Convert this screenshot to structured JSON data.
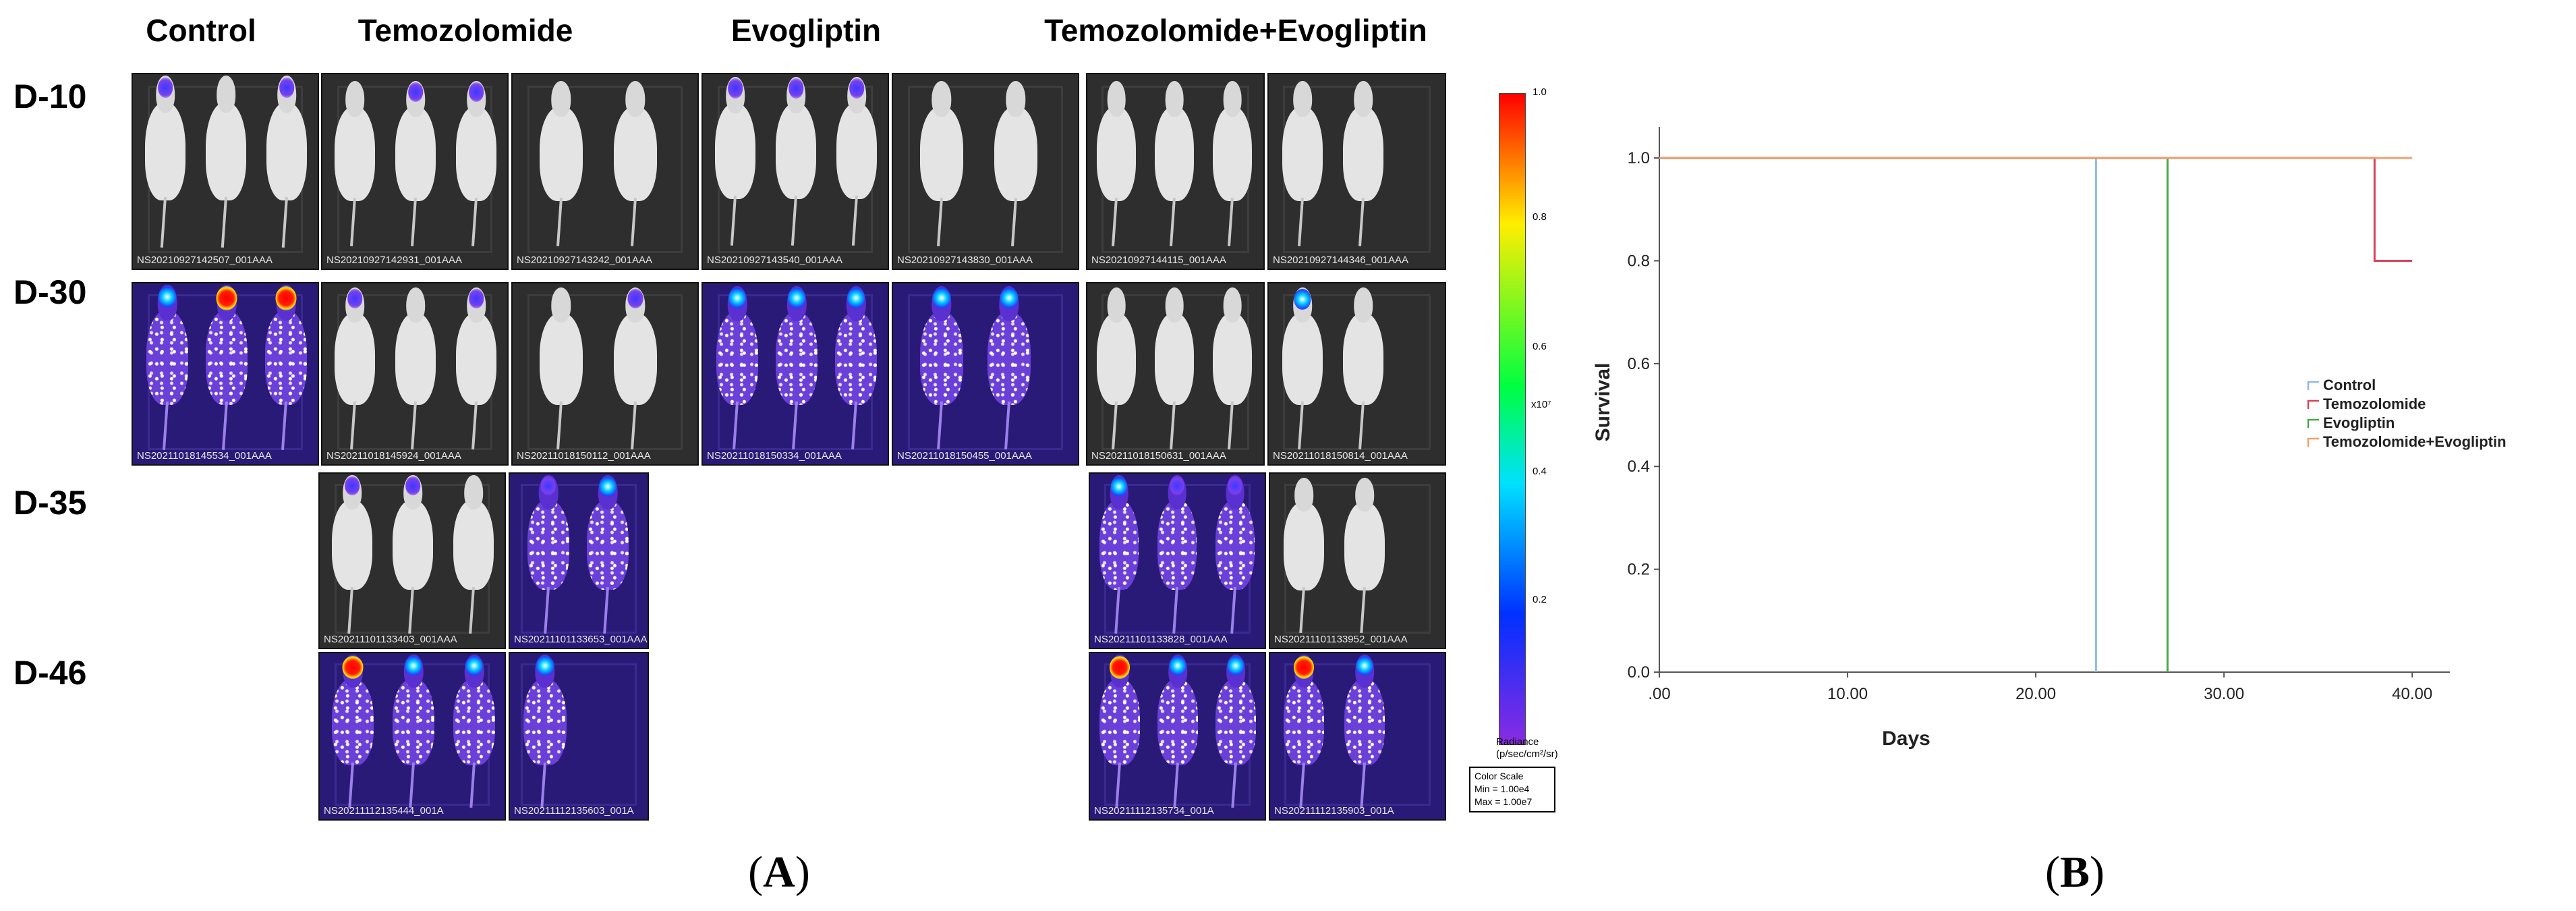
{
  "panel_a": {
    "label_letter": "A",
    "groups": [
      "Control",
      "Temozolomide",
      "Evogliptin",
      "Temozolomide+Evogliptin"
    ],
    "days": [
      "D-10",
      "D-30",
      "D-35",
      "D-46"
    ],
    "image_captions": {
      "d10": [
        "NS20210927142507_001AAA",
        "NS20210927142931_001AAA",
        "NS20210927143242_001AAA",
        "NS20210927143540_001AAA",
        "NS20210927143830_001AAA",
        "NS20210927144115_001AAA",
        "NS20210927144346_001AAA"
      ],
      "d30": [
        "NS20211018145534_001AAA",
        "NS20211018145924_001AAA",
        "NS20211018150112_001AAA",
        "NS20211018150334_001AAA",
        "NS20211018150455_001AAA",
        "NS20211018150631_001AAA",
        "NS20211018150814_001AAA"
      ],
      "d35": [
        "NS20211101133403_001AAA",
        "NS20211101133653_001AAA",
        "NS20211101133828_001AAA",
        "NS20211101133952_001AAA"
      ],
      "d46": [
        "NS20211112135444_001A",
        "NS20211112135603_001A",
        "NS20211112135734_001A",
        "NS20211112135903_001A"
      ]
    },
    "colorbar": {
      "ticks": [
        "1.0",
        "0.8",
        "0.6",
        "0.4",
        "0.2"
      ],
      "multiplier": "x10⁷",
      "title_line1": "Radiance",
      "title_line2": "(p/sec/cm²/sr)",
      "scale_title": "Color Scale",
      "scale_min": "Min = 1.00e4",
      "scale_max": "Max = 1.00e7"
    }
  },
  "panel_b": {
    "label_letter": "B",
    "chart_data": {
      "type": "line",
      "title": "",
      "xlabel": "Days",
      "ylabel": "Survival",
      "xlim": [
        0,
        42
      ],
      "ylim": [
        0,
        1.05
      ],
      "x_ticks": [
        0,
        10,
        20,
        30,
        40
      ],
      "x_tick_labels": [
        ".00",
        "10.00",
        "20.00",
        "30.00",
        "40.00"
      ],
      "y_ticks": [
        0,
        0.2,
        0.4,
        0.6,
        0.8,
        1.0
      ],
      "y_tick_labels": [
        "0.0",
        "0.2",
        "0.4",
        "0.6",
        "0.8",
        "1.0"
      ],
      "legend_position": "right",
      "series": [
        {
          "name": "Control",
          "color": "#8fb8e8",
          "x": [
            0,
            23.2,
            23.2
          ],
          "y": [
            1.0,
            1.0,
            0.0
          ]
        },
        {
          "name": "Temozolomide",
          "color": "#d9435a",
          "x": [
            0,
            38,
            38,
            40
          ],
          "y": [
            1.0,
            1.0,
            0.8,
            0.8
          ]
        },
        {
          "name": "Evogliptin",
          "color": "#4aa84a",
          "x": [
            0,
            27,
            27
          ],
          "y": [
            1.0,
            1.0,
            0.0
          ]
        },
        {
          "name": "Temozolomide+Evogliptin",
          "color": "#f0a070",
          "x": [
            0,
            40
          ],
          "y": [
            1.0,
            1.0
          ]
        }
      ]
    }
  }
}
